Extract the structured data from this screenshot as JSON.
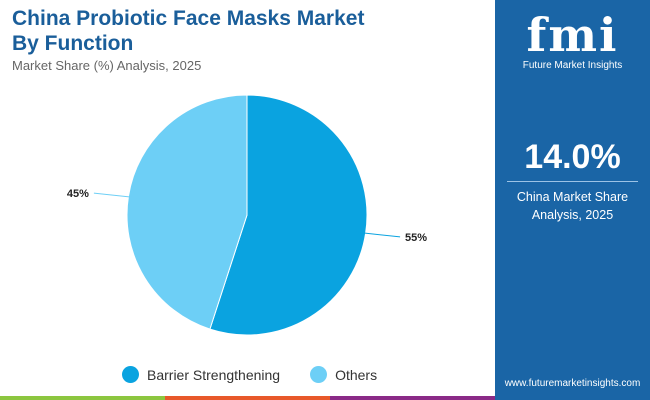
{
  "header": {
    "title_line1": "China Probiotic Face Masks Market",
    "title_line2": "By Function",
    "subtitle": "Market Share (%) Analysis, 2025"
  },
  "panel": {
    "logo": "fmi",
    "logo_text": "Future Market Insights",
    "value": "14.0%",
    "caption_line1": "China Market Share",
    "caption_line2": "Analysis, 2025",
    "url": "www.futuremarketinsights.com"
  },
  "chart_data": {
    "type": "pie",
    "categories": [
      "Barrier Strengthening",
      "Others"
    ],
    "values": [
      55,
      45
    ],
    "labels": [
      "55%",
      "45%"
    ],
    "colors": [
      "#0aa3e0",
      "#6dcff6"
    ],
    "legend_placement": "bottom"
  },
  "colors": {
    "brand": "#1a65a6",
    "title": "#1a5e9a",
    "bar": [
      "#8cc63f",
      "#e8582a",
      "#8a2a87"
    ]
  }
}
